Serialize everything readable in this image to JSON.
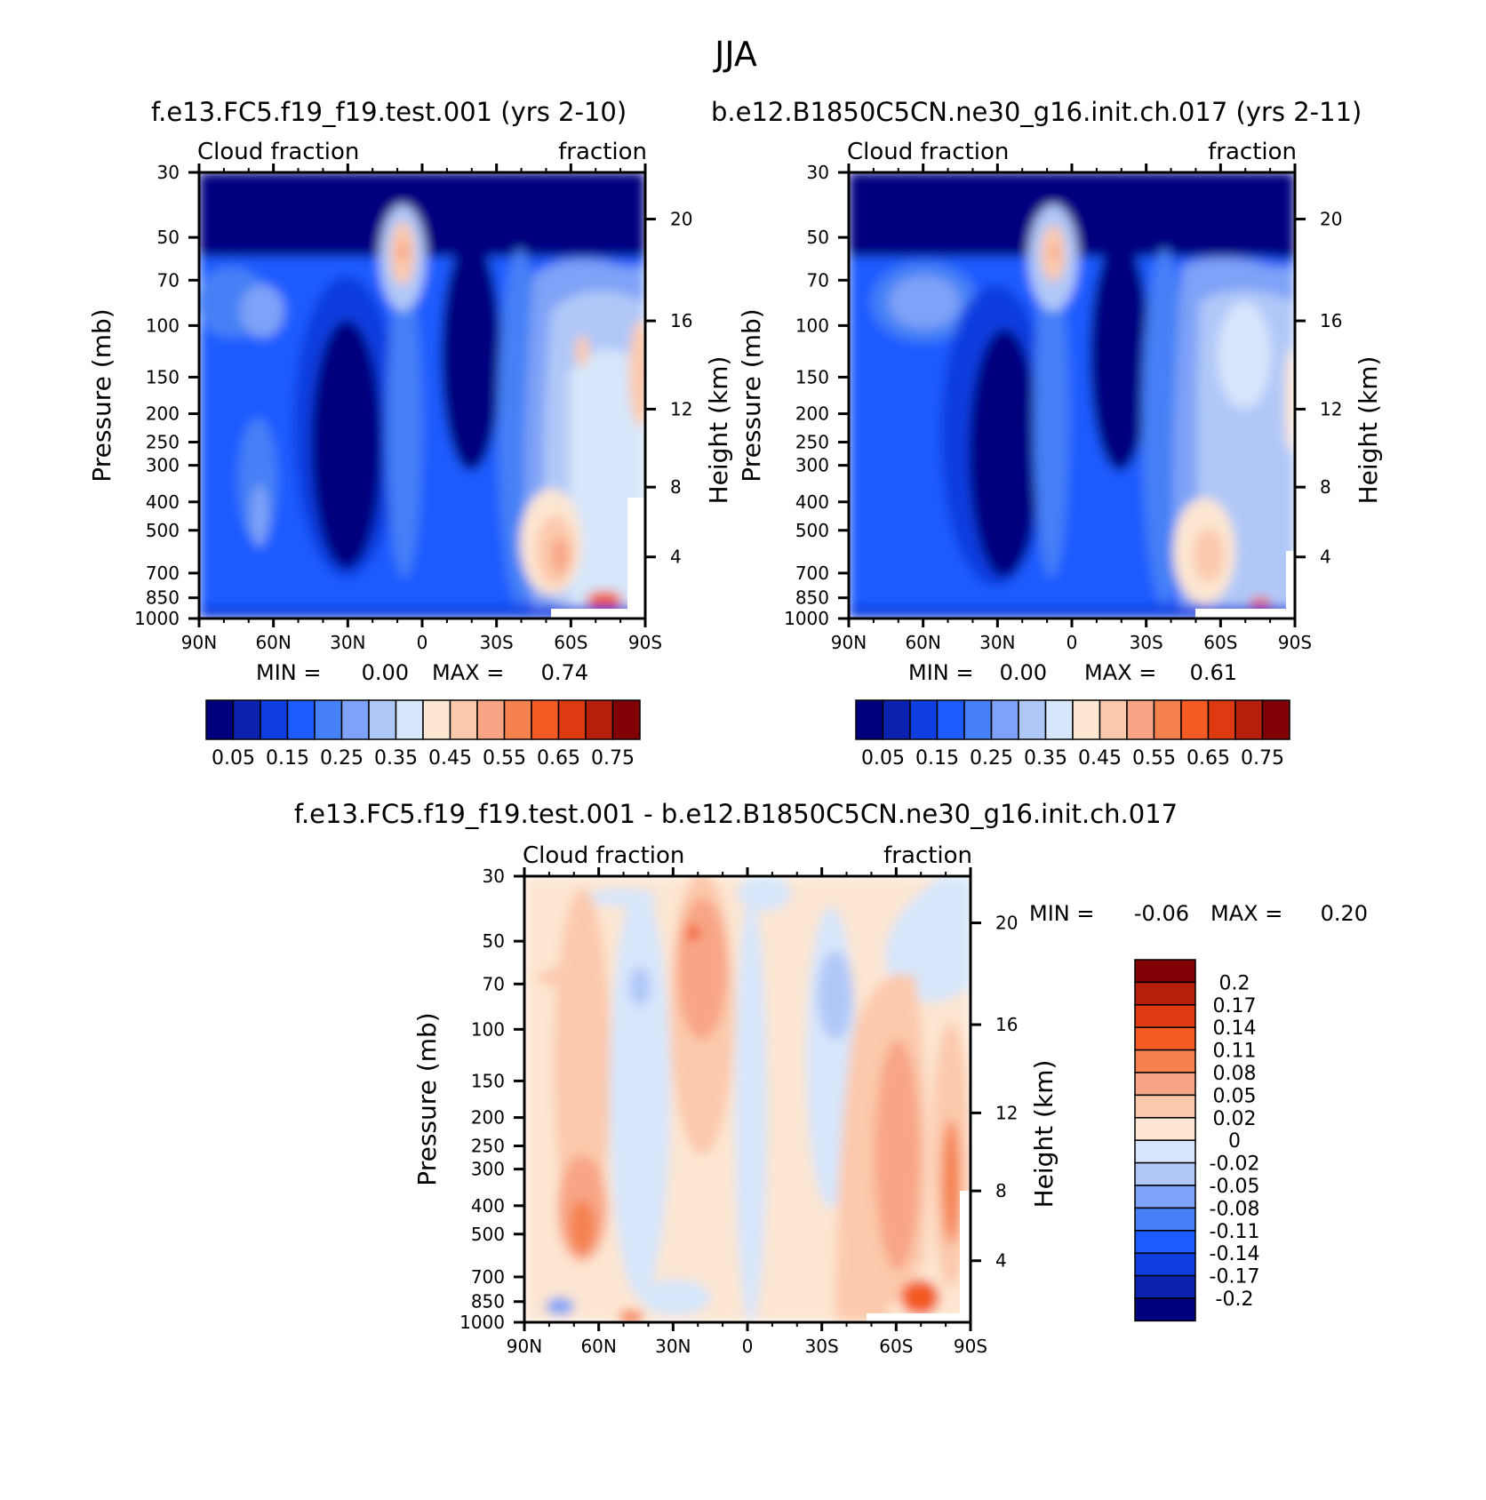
{
  "page": {
    "season_title": "JJA",
    "case1_title": "f.e13.FC5.f19_f19.test.001 (yrs 2-10)",
    "case2_title": "b.e12.B1850C5CN.ne30_g16.init.ch.017 (yrs 2-11)",
    "diff_title": "f.e13.FC5.f19_f19.test.001 - b.e12.B1850C5CN.ne30_g16.init.ch.017"
  },
  "colors": {
    "abs_palette": [
      "#00007f",
      "#0b22b0",
      "#0f3ee0",
      "#1c5cff",
      "#4580f6",
      "#7ea2f7",
      "#b0c8f8",
      "#d6e6fb",
      "#fde6d2",
      "#fcc9ac",
      "#f8a585",
      "#f5814f",
      "#f35a24",
      "#de3a12",
      "#b61f0b",
      "#810006"
    ],
    "diff_palette": [
      "#00007f",
      "#0b22b0",
      "#0f3ee0",
      "#1c5cff",
      "#4580f6",
      "#7ea2f7",
      "#b0c8f8",
      "#d6e6fb",
      "#fde6d2",
      "#fcc9ac",
      "#f8a585",
      "#f5814f",
      "#f35a24",
      "#de3a12",
      "#b61f0b",
      "#810006"
    ]
  },
  "chart_data": [
    {
      "type": "heatmap",
      "title_left": "Cloud fraction",
      "title_right": "fraction",
      "ylabel": "Pressure (mb)",
      "ylabel_right": "Height (km)",
      "x_ticks": [
        "90N",
        "60N",
        "30N",
        "0",
        "30S",
        "60S",
        "90S"
      ],
      "y_ticks": [
        "30",
        "50",
        "70",
        "100",
        "150",
        "200",
        "250",
        "300",
        "400",
        "500",
        "700",
        "850",
        "1000"
      ],
      "y_ticks_right": [
        "20",
        "16",
        "12",
        "8",
        "4"
      ],
      "ylim": [
        30,
        1000
      ],
      "min_label": "MIN =",
      "min_value": "0.00",
      "max_label": "MAX =",
      "max_value": "0.74",
      "colorbar_labels": [
        "0.05",
        "0.15",
        "0.25",
        "0.35",
        "0.45",
        "0.55",
        "0.65",
        "0.75"
      ]
    },
    {
      "type": "heatmap",
      "title_left": "Cloud fraction",
      "title_right": "fraction",
      "ylabel": "Pressure (mb)",
      "ylabel_right": "Height (km)",
      "x_ticks": [
        "90N",
        "60N",
        "30N",
        "0",
        "30S",
        "60S",
        "90S"
      ],
      "y_ticks": [
        "30",
        "50",
        "70",
        "100",
        "150",
        "200",
        "250",
        "300",
        "400",
        "500",
        "700",
        "850",
        "1000"
      ],
      "y_ticks_right": [
        "20",
        "16",
        "12",
        "8",
        "4"
      ],
      "ylim": [
        30,
        1000
      ],
      "min_label": "MIN =",
      "min_value": "0.00",
      "max_label": "MAX =",
      "max_value": "0.61",
      "colorbar_labels": [
        "0.05",
        "0.15",
        "0.25",
        "0.35",
        "0.45",
        "0.55",
        "0.65",
        "0.75"
      ]
    },
    {
      "type": "heatmap",
      "title_left": "Cloud fraction",
      "title_right": "fraction",
      "ylabel": "Pressure (mb)",
      "ylabel_right": "Height (km)",
      "x_ticks": [
        "90N",
        "60N",
        "30N",
        "0",
        "30S",
        "60S",
        "90S"
      ],
      "y_ticks": [
        "30",
        "50",
        "70",
        "100",
        "150",
        "200",
        "250",
        "300",
        "400",
        "500",
        "700",
        "850",
        "1000"
      ],
      "y_ticks_right": [
        "20",
        "16",
        "12",
        "8",
        "4"
      ],
      "ylim": [
        30,
        1000
      ],
      "min_label": "MIN =",
      "min_value": "-0.06",
      "max_label": "MAX =",
      "max_value": "0.20",
      "colorbar_labels": [
        "0.2",
        "0.17",
        "0.14",
        "0.11",
        "0.08",
        "0.05",
        "0.02",
        "0",
        "-0.02",
        "-0.05",
        "-0.08",
        "-0.11",
        "-0.14",
        "-0.17",
        "-0.2"
      ]
    }
  ]
}
